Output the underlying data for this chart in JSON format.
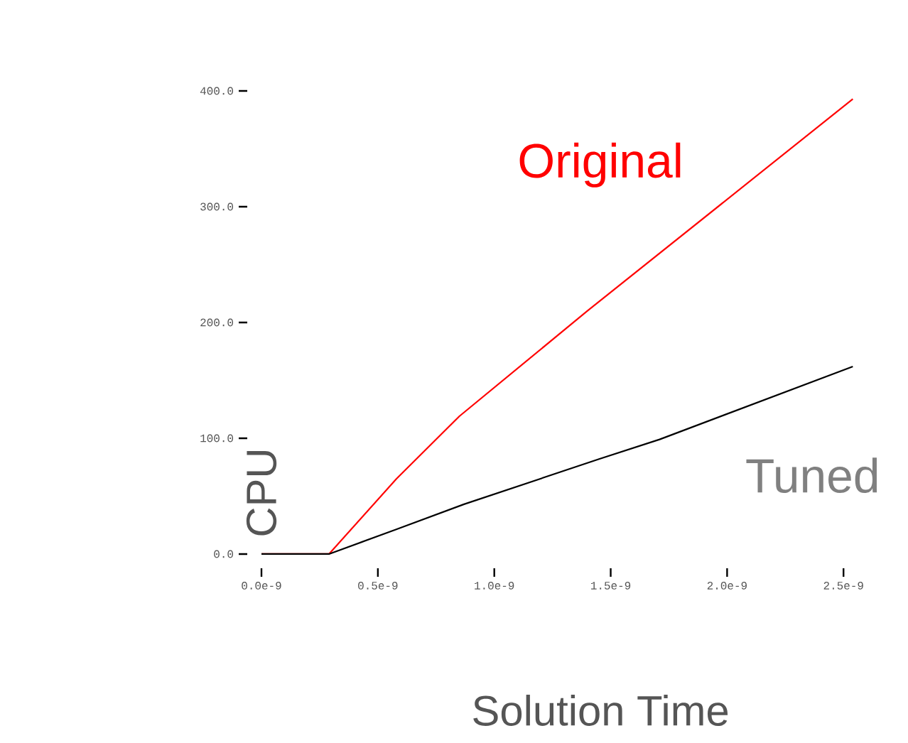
{
  "chart_data": {
    "type": "line",
    "xlabel": "Solution Time",
    "ylabel": "CPU",
    "xlim": [
      0,
      2.6e-09
    ],
    "ylim": [
      0,
      400
    ],
    "xticks": [
      {
        "value": 0,
        "label": "0.0e-9"
      },
      {
        "value": 5e-10,
        "label": "0.5e-9"
      },
      {
        "value": 1e-09,
        "label": "1.0e-9"
      },
      {
        "value": 1.5e-09,
        "label": "1.5e-9"
      },
      {
        "value": 2e-09,
        "label": "2.0e-9"
      },
      {
        "value": 2.5e-09,
        "label": "2.5e-9"
      }
    ],
    "yticks": [
      {
        "value": 0,
        "label": "0.0"
      },
      {
        "value": 100,
        "label": "100.0"
      },
      {
        "value": 200,
        "label": "200.0"
      },
      {
        "value": 300,
        "label": "300.0"
      },
      {
        "value": 400,
        "label": "400.0"
      }
    ],
    "series": [
      {
        "name": "Original",
        "color": "#ff0000",
        "x": [
          0,
          2.9e-10,
          5.8e-10,
          8.5e-10,
          1.4e-09,
          2.54e-09
        ],
        "values": [
          0,
          0,
          65,
          119,
          210,
          393
        ]
      },
      {
        "name": "Tuned",
        "color": "#000000",
        "x": [
          0,
          2.9e-10,
          5.75e-10,
          8.7e-10,
          1.45e-09,
          1.71e-09,
          2.54e-09
        ],
        "values": [
          0,
          0,
          21,
          43,
          82,
          99,
          162
        ]
      }
    ]
  }
}
